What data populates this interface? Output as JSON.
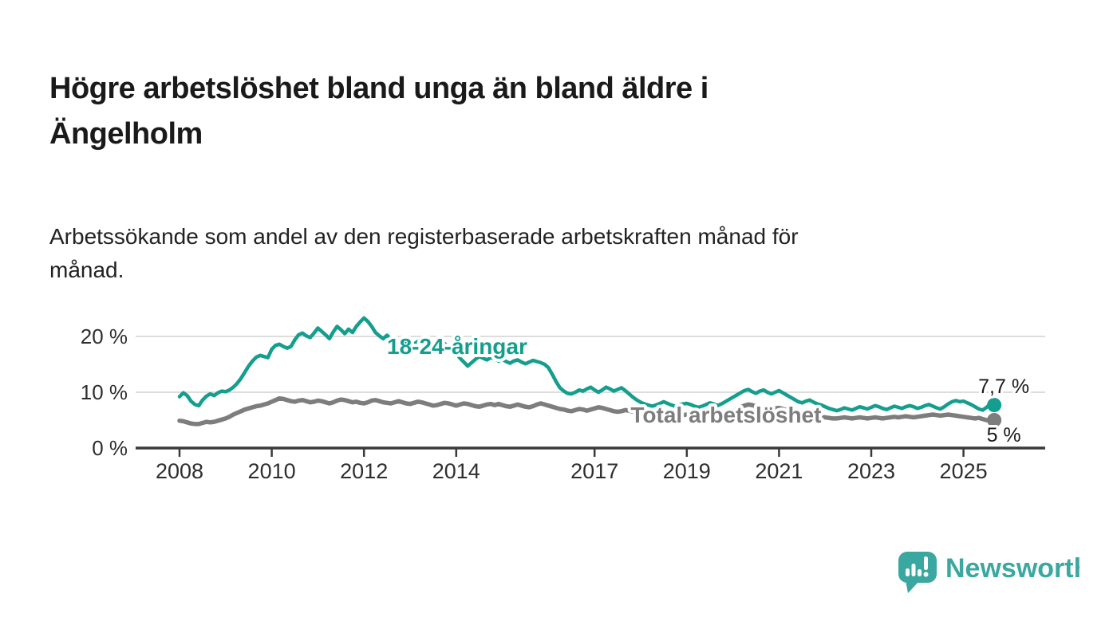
{
  "header": {
    "title_lines": [
      "Högre arbetslöshet bland unga än bland äldre i",
      "Ängelholm"
    ],
    "subtitle_lines": [
      "Arbetssökande som andel av den registerbaserade arbetskraften månad för",
      "månad."
    ]
  },
  "branding": {
    "name": "Newsworthy",
    "color": "#3AA7A0"
  },
  "chart_data": {
    "type": "line",
    "title": "",
    "xlabel": "",
    "ylabel": "",
    "x_start_year": 2008,
    "x_step_months": 1,
    "ylim": [
      0,
      25
    ],
    "xlim": [
      2007.05,
      2026.8
    ],
    "grid": "horizontal",
    "y_ticks": [
      {
        "value": 0,
        "label": "0 %"
      },
      {
        "value": 10,
        "label": "10 %"
      },
      {
        "value": 20,
        "label": "20 %"
      }
    ],
    "x_ticks": [
      {
        "value": 2008,
        "label": "2008"
      },
      {
        "value": 2010,
        "label": "2010"
      },
      {
        "value": 2012,
        "label": "2012"
      },
      {
        "value": 2014,
        "label": "2014"
      },
      {
        "value": 2017,
        "label": "2017"
      },
      {
        "value": 2019,
        "label": "2019"
      },
      {
        "value": 2021,
        "label": "2021"
      },
      {
        "value": 2023,
        "label": "2023"
      },
      {
        "value": 2025,
        "label": "2025"
      }
    ],
    "colors": {
      "grid": "#DDDDDD",
      "axis": "#3A3A3A",
      "tick_text": "#2E2E2E",
      "annotation_text": "#1A1A1A"
    },
    "series": [
      {
        "name": "Total arbetslöshet",
        "color": "#7D7D7D",
        "line_width": 5.5,
        "label_pos": {
          "year": 2019.85,
          "value": 6.0
        },
        "end_label": "5 %",
        "end_label_side": "below",
        "values": [
          4.9,
          4.8,
          4.6,
          4.4,
          4.3,
          4.3,
          4.5,
          4.7,
          4.6,
          4.7,
          4.9,
          5.1,
          5.3,
          5.6,
          6.0,
          6.3,
          6.6,
          6.9,
          7.1,
          7.3,
          7.5,
          7.6,
          7.8,
          8.0,
          8.3,
          8.6,
          8.9,
          8.8,
          8.6,
          8.4,
          8.3,
          8.5,
          8.6,
          8.4,
          8.2,
          8.3,
          8.5,
          8.4,
          8.2,
          8.0,
          8.2,
          8.5,
          8.7,
          8.6,
          8.4,
          8.2,
          8.3,
          8.1,
          8.0,
          8.2,
          8.5,
          8.6,
          8.4,
          8.2,
          8.1,
          8.0,
          8.2,
          8.4,
          8.2,
          8.0,
          7.9,
          8.1,
          8.3,
          8.2,
          8.0,
          7.8,
          7.6,
          7.7,
          7.9,
          8.1,
          8.0,
          7.8,
          7.6,
          7.8,
          8.0,
          7.9,
          7.7,
          7.5,
          7.4,
          7.6,
          7.8,
          7.9,
          7.7,
          7.9,
          7.7,
          7.5,
          7.4,
          7.6,
          7.8,
          7.6,
          7.4,
          7.3,
          7.5,
          7.8,
          8.0,
          7.8,
          7.6,
          7.4,
          7.2,
          7.0,
          6.9,
          6.7,
          6.6,
          6.8,
          7.0,
          6.9,
          6.7,
          6.9,
          7.1,
          7.3,
          7.2,
          7.0,
          6.8,
          6.6,
          6.5,
          6.6,
          6.8,
          6.7,
          6.5,
          6.4,
          6.2,
          6.1,
          6.0,
          5.9,
          5.8,
          5.9,
          6.0,
          5.9,
          5.8,
          5.7,
          5.8,
          5.9,
          6.0,
          5.9,
          5.8,
          5.8,
          5.9,
          6.0,
          6.1,
          6.0,
          6.1,
          6.2,
          6.3,
          6.4,
          6.6,
          6.9,
          7.3,
          7.6,
          7.8,
          7.7,
          7.5,
          7.4,
          7.3,
          7.1,
          7.0,
          7.1,
          7.2,
          7.0,
          6.8,
          6.6,
          6.4,
          6.3,
          6.1,
          6.0,
          5.9,
          5.8,
          5.7,
          5.6,
          5.5,
          5.4,
          5.3,
          5.3,
          5.4,
          5.5,
          5.4,
          5.3,
          5.4,
          5.5,
          5.4,
          5.3,
          5.4,
          5.5,
          5.4,
          5.3,
          5.4,
          5.5,
          5.6,
          5.5,
          5.6,
          5.7,
          5.6,
          5.5,
          5.6,
          5.7,
          5.8,
          5.9,
          6.0,
          5.9,
          5.8,
          5.9,
          6.0,
          5.9,
          5.8,
          5.7,
          5.6,
          5.5,
          5.4,
          5.3,
          5.4,
          5.2,
          5.0,
          4.9,
          5.0
        ]
      },
      {
        "name": "18-24-åringar",
        "color": "#149E8D",
        "line_width": 4.5,
        "label_pos": {
          "year": 2014.02,
          "value": 18.3
        },
        "end_label": "7,7 %",
        "end_label_side": "above",
        "values": [
          9.2,
          9.9,
          9.4,
          8.4,
          7.8,
          7.6,
          8.6,
          9.3,
          9.7,
          9.4,
          9.9,
          10.2,
          10.1,
          10.4,
          10.9,
          11.6,
          12.5,
          13.6,
          14.7,
          15.6,
          16.3,
          16.6,
          16.4,
          16.2,
          17.7,
          18.4,
          18.6,
          18.2,
          17.9,
          18.2,
          19.4,
          20.3,
          20.6,
          20.1,
          19.8,
          20.6,
          21.5,
          20.9,
          20.3,
          19.6,
          20.8,
          21.8,
          21.2,
          20.5,
          21.3,
          20.7,
          21.8,
          22.6,
          23.3,
          22.7,
          21.8,
          20.7,
          20.1,
          19.6,
          20.2,
          19.5,
          18.7,
          18.4,
          19.1,
          18.6,
          18.1,
          18.6,
          19.1,
          18.7,
          18.2,
          17.9,
          18.4,
          18.9,
          19.2,
          18.7,
          18.1,
          17.5,
          16.9,
          16.1,
          15.4,
          14.7,
          15.3,
          15.9,
          16.4,
          16.1,
          15.8,
          16.2,
          16.0,
          15.6,
          15.9,
          15.5,
          15.2,
          15.6,
          15.8,
          15.4,
          15.1,
          15.4,
          15.7,
          15.5,
          15.3,
          15.0,
          14.4,
          13.2,
          11.9,
          10.8,
          10.2,
          9.8,
          9.7,
          10.0,
          10.4,
          10.2,
          10.6,
          10.9,
          10.4,
          10.0,
          10.4,
          10.9,
          10.6,
          10.2,
          10.5,
          10.8,
          10.3,
          9.7,
          9.1,
          8.6,
          8.2,
          7.9,
          7.7,
          7.5,
          7.7,
          8.0,
          8.3,
          8.0,
          7.7,
          7.5,
          7.7,
          7.9,
          8.0,
          7.8,
          7.5,
          7.3,
          7.5,
          7.8,
          8.1,
          7.9,
          7.6,
          7.9,
          8.3,
          8.7,
          9.1,
          9.5,
          9.9,
          10.3,
          10.5,
          10.1,
          9.8,
          10.2,
          10.4,
          10.0,
          9.7,
          10.0,
          10.3,
          9.9,
          9.5,
          9.1,
          8.7,
          8.3,
          8.1,
          8.4,
          8.6,
          8.2,
          7.9,
          7.7,
          7.4,
          7.1,
          6.9,
          6.7,
          6.9,
          7.2,
          7.0,
          6.8,
          7.1,
          7.4,
          7.2,
          7.0,
          7.3,
          7.6,
          7.4,
          7.1,
          6.9,
          7.2,
          7.5,
          7.3,
          7.1,
          7.4,
          7.6,
          7.4,
          7.1,
          7.3,
          7.6,
          7.8,
          7.5,
          7.2,
          7.0,
          7.4,
          7.9,
          8.3,
          8.5,
          8.3,
          8.4,
          8.1,
          7.8,
          7.4,
          7.0,
          6.8,
          7.3,
          7.9,
          7.7
        ]
      }
    ]
  }
}
